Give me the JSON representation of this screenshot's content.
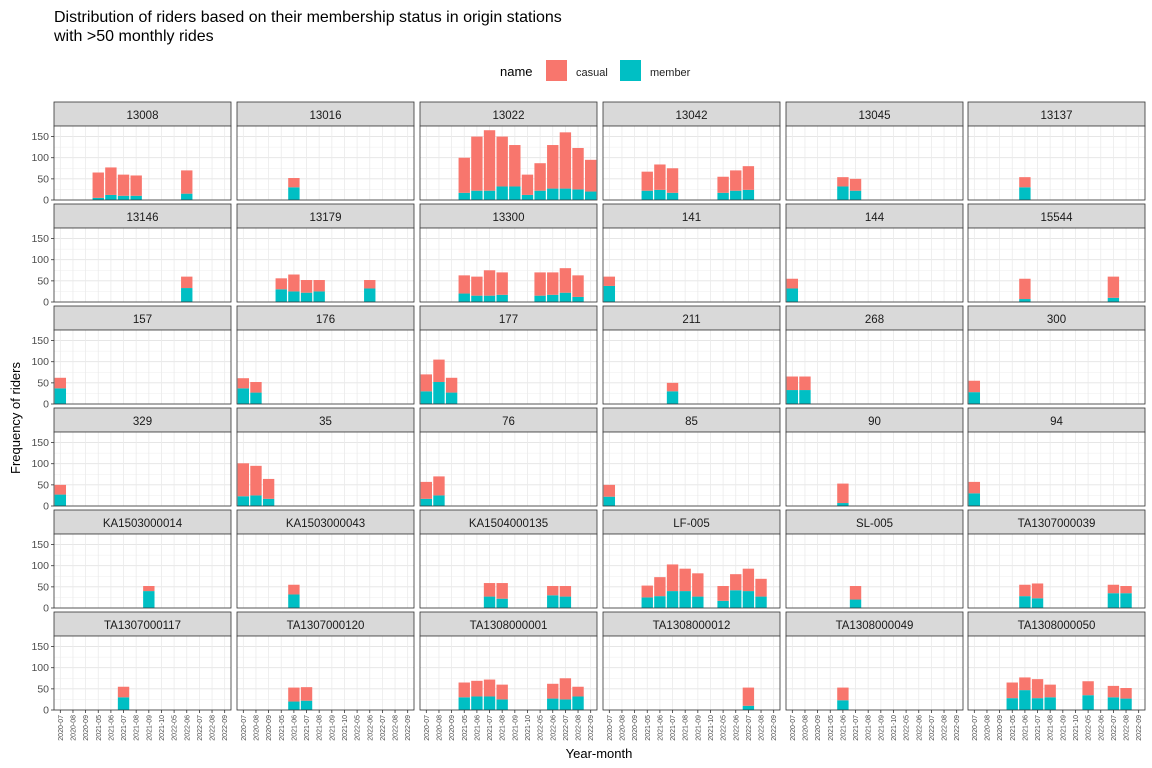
{
  "chart_data": {
    "type": "bar",
    "title": "Distribution of riders based on their membership status in origin stations with >50 monthly rides",
    "title_lines": [
      "Distribution of riders based on their membership status in origin stations",
      "with >50 monthly rides"
    ],
    "xlabel": "Year-month",
    "ylabel": "Frequency of riders",
    "ylim": [
      0,
      175
    ],
    "yticks": [
      0,
      50,
      100,
      150
    ],
    "stacked": true,
    "legend": {
      "title": "name",
      "position": "top",
      "entries": [
        "casual",
        "member"
      ]
    },
    "colors": {
      "casual": "#F8766D",
      "member": "#00BFC4",
      "strip_bg": "#D9D9D9"
    },
    "categories": [
      "2020-07",
      "2020-08",
      "2020-09",
      "2021-05",
      "2021-06",
      "2021-07",
      "2021-08",
      "2021-09",
      "2021-10",
      "2022-05",
      "2022-06",
      "2022-07",
      "2022-08",
      "2022-09"
    ],
    "facets": [
      {
        "name": "13008",
        "bars": [
          {
            "x": "2021-05",
            "member": 5,
            "casual": 60
          },
          {
            "x": "2021-06",
            "member": 12,
            "casual": 65
          },
          {
            "x": "2021-07",
            "member": 10,
            "casual": 50
          },
          {
            "x": "2021-08",
            "member": 10,
            "casual": 48
          },
          {
            "x": "2022-06",
            "member": 15,
            "casual": 55
          }
        ]
      },
      {
        "name": "13016",
        "bars": [
          {
            "x": "2021-06",
            "member": 30,
            "casual": 22
          }
        ]
      },
      {
        "name": "13022",
        "bars": [
          {
            "x": "2021-05",
            "member": 17,
            "casual": 83
          },
          {
            "x": "2021-06",
            "member": 22,
            "casual": 128
          },
          {
            "x": "2021-07",
            "member": 22,
            "casual": 143
          },
          {
            "x": "2021-08",
            "member": 32,
            "casual": 118
          },
          {
            "x": "2021-09",
            "member": 32,
            "casual": 98
          },
          {
            "x": "2021-10",
            "member": 12,
            "casual": 48
          },
          {
            "x": "2022-05",
            "member": 22,
            "casual": 65
          },
          {
            "x": "2022-06",
            "member": 27,
            "casual": 103
          },
          {
            "x": "2022-07",
            "member": 27,
            "casual": 133
          },
          {
            "x": "2022-08",
            "member": 25,
            "casual": 98
          },
          {
            "x": "2022-09",
            "member": 20,
            "casual": 75
          }
        ]
      },
      {
        "name": "13042",
        "bars": [
          {
            "x": "2021-05",
            "member": 22,
            "casual": 45
          },
          {
            "x": "2021-06",
            "member": 24,
            "casual": 60
          },
          {
            "x": "2021-07",
            "member": 17,
            "casual": 58
          },
          {
            "x": "2022-05",
            "member": 17,
            "casual": 38
          },
          {
            "x": "2022-06",
            "member": 22,
            "casual": 48
          },
          {
            "x": "2022-07",
            "member": 24,
            "casual": 56
          }
        ]
      },
      {
        "name": "13045",
        "bars": [
          {
            "x": "2021-06",
            "member": 32,
            "casual": 22
          },
          {
            "x": "2021-07",
            "member": 22,
            "casual": 28
          }
        ]
      },
      {
        "name": "13137",
        "bars": [
          {
            "x": "2021-06",
            "member": 30,
            "casual": 24
          }
        ]
      },
      {
        "name": "13146",
        "bars": [
          {
            "x": "2022-06",
            "member": 33,
            "casual": 27
          }
        ]
      },
      {
        "name": "13179",
        "bars": [
          {
            "x": "2021-05",
            "member": 30,
            "casual": 26
          },
          {
            "x": "2021-06",
            "member": 25,
            "casual": 40
          },
          {
            "x": "2021-07",
            "member": 22,
            "casual": 30
          },
          {
            "x": "2021-08",
            "member": 25,
            "casual": 27
          },
          {
            "x": "2022-06",
            "member": 32,
            "casual": 20
          }
        ]
      },
      {
        "name": "13300",
        "bars": [
          {
            "x": "2021-05",
            "member": 20,
            "casual": 43
          },
          {
            "x": "2021-06",
            "member": 15,
            "casual": 45
          },
          {
            "x": "2021-07",
            "member": 15,
            "casual": 60
          },
          {
            "x": "2021-08",
            "member": 17,
            "casual": 53
          },
          {
            "x": "2022-05",
            "member": 15,
            "casual": 55
          },
          {
            "x": "2022-06",
            "member": 17,
            "casual": 53
          },
          {
            "x": "2022-07",
            "member": 22,
            "casual": 58
          },
          {
            "x": "2022-08",
            "member": 12,
            "casual": 51
          }
        ]
      },
      {
        "name": "141",
        "bars": [
          {
            "x": "2020-07",
            "member": 38,
            "casual": 22
          }
        ]
      },
      {
        "name": "144",
        "bars": [
          {
            "x": "2020-07",
            "member": 32,
            "casual": 23
          }
        ]
      },
      {
        "name": "15544",
        "bars": [
          {
            "x": "2021-06",
            "member": 7,
            "casual": 48
          },
          {
            "x": "2022-07",
            "member": 10,
            "casual": 50
          }
        ]
      },
      {
        "name": "157",
        "bars": [
          {
            "x": "2020-07",
            "member": 37,
            "casual": 25
          }
        ]
      },
      {
        "name": "176",
        "bars": [
          {
            "x": "2020-07",
            "member": 37,
            "casual": 24
          },
          {
            "x": "2020-08",
            "member": 27,
            "casual": 25
          }
        ]
      },
      {
        "name": "177",
        "bars": [
          {
            "x": "2020-07",
            "member": 30,
            "casual": 40
          },
          {
            "x": "2020-08",
            "member": 52,
            "casual": 53
          },
          {
            "x": "2020-09",
            "member": 27,
            "casual": 35
          }
        ]
      },
      {
        "name": "211",
        "bars": [
          {
            "x": "2021-07",
            "member": 30,
            "casual": 20
          }
        ]
      },
      {
        "name": "268",
        "bars": [
          {
            "x": "2020-07",
            "member": 33,
            "casual": 32
          },
          {
            "x": "2020-08",
            "member": 33,
            "casual": 32
          }
        ]
      },
      {
        "name": "300",
        "bars": [
          {
            "x": "2020-07",
            "member": 28,
            "casual": 27
          }
        ]
      },
      {
        "name": "329",
        "bars": [
          {
            "x": "2020-07",
            "member": 27,
            "casual": 23
          }
        ]
      },
      {
        "name": "35",
        "bars": [
          {
            "x": "2020-07",
            "member": 23,
            "casual": 78
          },
          {
            "x": "2020-08",
            "member": 25,
            "casual": 70
          },
          {
            "x": "2020-09",
            "member": 17,
            "casual": 47
          }
        ]
      },
      {
        "name": "76",
        "bars": [
          {
            "x": "2020-07",
            "member": 17,
            "casual": 40
          },
          {
            "x": "2020-08",
            "member": 25,
            "casual": 45
          }
        ]
      },
      {
        "name": "85",
        "bars": [
          {
            "x": "2020-07",
            "member": 22,
            "casual": 28
          }
        ]
      },
      {
        "name": "90",
        "bars": [
          {
            "x": "2021-06",
            "member": 7,
            "casual": 46
          }
        ]
      },
      {
        "name": "94",
        "bars": [
          {
            "x": "2020-07",
            "member": 30,
            "casual": 27
          }
        ]
      },
      {
        "name": "KA1503000014",
        "bars": [
          {
            "x": "2021-09",
            "member": 40,
            "casual": 12
          }
        ]
      },
      {
        "name": "KA1503000043",
        "bars": [
          {
            "x": "2021-06",
            "member": 32,
            "casual": 23
          }
        ]
      },
      {
        "name": "KA1504000135",
        "bars": [
          {
            "x": "2021-07",
            "member": 27,
            "casual": 32
          },
          {
            "x": "2021-08",
            "member": 22,
            "casual": 37
          },
          {
            "x": "2022-06",
            "member": 30,
            "casual": 22
          },
          {
            "x": "2022-07",
            "member": 27,
            "casual": 25
          }
        ]
      },
      {
        "name": "LF-005",
        "bars": [
          {
            "x": "2021-05",
            "member": 25,
            "casual": 28
          },
          {
            "x": "2021-06",
            "member": 28,
            "casual": 45
          },
          {
            "x": "2021-07",
            "member": 40,
            "casual": 63
          },
          {
            "x": "2021-08",
            "member": 40,
            "casual": 53
          },
          {
            "x": "2021-09",
            "member": 27,
            "casual": 55
          },
          {
            "x": "2022-05",
            "member": 17,
            "casual": 35
          },
          {
            "x": "2022-06",
            "member": 42,
            "casual": 38
          },
          {
            "x": "2022-07",
            "member": 40,
            "casual": 53
          },
          {
            "x": "2022-08",
            "member": 27,
            "casual": 42
          }
        ]
      },
      {
        "name": "SL-005",
        "bars": [
          {
            "x": "2021-07",
            "member": 20,
            "casual": 32
          }
        ]
      },
      {
        "name": "TA1307000039",
        "bars": [
          {
            "x": "2021-06",
            "member": 28,
            "casual": 27
          },
          {
            "x": "2021-07",
            "member": 23,
            "casual": 35
          },
          {
            "x": "2022-07",
            "member": 35,
            "casual": 20
          },
          {
            "x": "2022-08",
            "member": 35,
            "casual": 17
          }
        ]
      },
      {
        "name": "TA1307000117",
        "bars": [
          {
            "x": "2021-07",
            "member": 30,
            "casual": 25
          }
        ]
      },
      {
        "name": "TA1307000120",
        "bars": [
          {
            "x": "2021-06",
            "member": 20,
            "casual": 33
          },
          {
            "x": "2021-07",
            "member": 22,
            "casual": 32
          }
        ]
      },
      {
        "name": "TA1308000001",
        "bars": [
          {
            "x": "2021-05",
            "member": 30,
            "casual": 35
          },
          {
            "x": "2021-06",
            "member": 32,
            "casual": 37
          },
          {
            "x": "2021-07",
            "member": 32,
            "casual": 40
          },
          {
            "x": "2021-08",
            "member": 25,
            "casual": 35
          },
          {
            "x": "2022-06",
            "member": 27,
            "casual": 35
          },
          {
            "x": "2022-07",
            "member": 25,
            "casual": 50
          },
          {
            "x": "2022-08",
            "member": 32,
            "casual": 23
          }
        ]
      },
      {
        "name": "TA1308000012",
        "bars": [
          {
            "x": "2022-07",
            "member": 10,
            "casual": 43
          }
        ]
      },
      {
        "name": "TA1308000049",
        "bars": [
          {
            "x": "2021-06",
            "member": 23,
            "casual": 30
          }
        ]
      },
      {
        "name": "TA1308000050",
        "bars": [
          {
            "x": "2021-05",
            "member": 28,
            "casual": 37
          },
          {
            "x": "2021-06",
            "member": 47,
            "casual": 30
          },
          {
            "x": "2021-07",
            "member": 28,
            "casual": 45
          },
          {
            "x": "2021-08",
            "member": 30,
            "casual": 30
          },
          {
            "x": "2022-05",
            "member": 35,
            "casual": 33
          },
          {
            "x": "2022-07",
            "member": 30,
            "casual": 27
          },
          {
            "x": "2022-08",
            "member": 27,
            "casual": 25
          }
        ]
      }
    ]
  }
}
